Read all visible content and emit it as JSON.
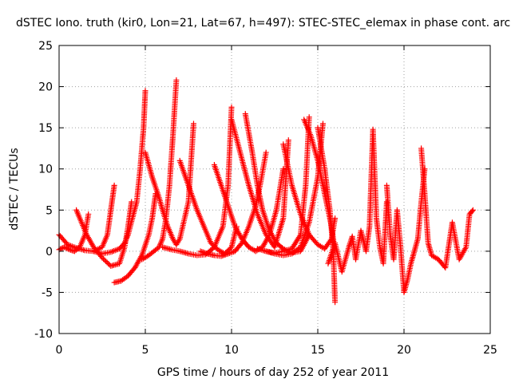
{
  "chart_data": {
    "type": "scatter",
    "title": "dSTEC Iono. truth (kir0, Lon=21, Lat=67, h=497): STEC-STEC_elemax in phase cont. arc",
    "xlabel": "GPS time / hours of day 252 of year 2011",
    "ylabel": "dSTEC  / TECUs",
    "xlim": [
      0,
      25
    ],
    "ylim": [
      -10,
      25
    ],
    "xticks": [
      0,
      5,
      10,
      15,
      20,
      25
    ],
    "yticks": [
      -10,
      -5,
      0,
      5,
      10,
      15,
      20,
      25
    ],
    "xtick_labels": [
      "0",
      "5",
      "10",
      "15",
      "20",
      "25"
    ],
    "ytick_labels": [
      "-10",
      "-5",
      "0",
      "5",
      "10",
      "15",
      "20",
      "25"
    ],
    "grid": true,
    "legend": "none",
    "marker": "plus",
    "marker_color": "#ff0000",
    "arcs": [
      {
        "x": [
          0.0,
          0.5,
          1.0,
          1.5,
          2.0,
          2.5,
          2.8,
          3.0,
          3.2
        ],
        "y": [
          2.0,
          0.8,
          0.4,
          0.1,
          0.0,
          0.5,
          2.0,
          5.0,
          8.0
        ]
      },
      {
        "x": [
          0.0,
          0.3,
          0.6,
          0.9,
          1.2,
          1.5,
          1.7
        ],
        "y": [
          0.2,
          0.5,
          0.2,
          0.0,
          0.5,
          2.0,
          4.5
        ]
      },
      {
        "x": [
          1.0,
          1.3,
          1.6,
          2.0,
          2.5,
          3.0,
          3.5,
          3.8,
          4.0,
          4.2
        ],
        "y": [
          5.0,
          3.5,
          2.0,
          0.5,
          -0.8,
          -1.8,
          -1.5,
          0.5,
          3.0,
          6.0
        ]
      },
      {
        "x": [
          2.0,
          2.5,
          3.0,
          3.5,
          3.8,
          4.0,
          4.5,
          4.7,
          4.9,
          5.0
        ],
        "y": [
          0.0,
          -0.3,
          -0.1,
          0.3,
          1.0,
          2.0,
          6.0,
          10.0,
          15.0,
          19.5
        ]
      },
      {
        "x": [
          3.2,
          3.6,
          4.0,
          4.4,
          4.8,
          5.2,
          5.4,
          5.6
        ],
        "y": [
          -3.8,
          -3.6,
          -3.0,
          -2.0,
          -0.5,
          2.0,
          4.0,
          7.0
        ]
      },
      {
        "x": [
          4.8,
          5.2,
          5.5,
          5.8,
          6.0,
          6.2,
          6.4,
          6.6,
          6.8
        ],
        "y": [
          -1.0,
          -0.5,
          0.0,
          0.5,
          1.5,
          4.0,
          8.0,
          14.0,
          20.8
        ]
      },
      {
        "x": [
          5.0,
          5.4,
          5.8,
          6.0,
          6.3,
          6.6,
          6.8,
          7.0,
          7.5,
          7.8
        ],
        "y": [
          12.0,
          9.0,
          6.5,
          5.0,
          3.0,
          1.5,
          0.8,
          1.5,
          6.0,
          15.5
        ]
      },
      {
        "x": [
          6.0,
          6.5,
          7.0,
          7.5,
          8.0,
          8.5,
          9.0,
          9.5,
          9.8,
          10.0
        ],
        "y": [
          0.5,
          0.2,
          0.0,
          -0.3,
          -0.5,
          -0.4,
          0.5,
          3.0,
          8.0,
          17.5
        ]
      },
      {
        "x": [
          7.0,
          7.5,
          8.0,
          8.5,
          8.8,
          9.2,
          9.6,
          10.0,
          10.3
        ],
        "y": [
          11.0,
          8.0,
          5.0,
          2.5,
          1.0,
          0.2,
          -0.3,
          0.5,
          3.0
        ]
      },
      {
        "x": [
          8.2,
          8.6,
          9.0,
          9.4,
          9.8,
          10.2,
          10.6,
          11.0,
          11.4,
          11.7,
          12.0
        ],
        "y": [
          0.0,
          -0.3,
          -0.5,
          -0.6,
          -0.3,
          0.0,
          1.0,
          3.0,
          5.5,
          8.5,
          12.0
        ]
      },
      {
        "x": [
          9.0,
          9.4,
          9.8,
          10.2,
          10.6,
          11.0,
          11.4,
          11.8,
          12.2,
          12.6,
          13.0
        ],
        "y": [
          10.5,
          8.0,
          5.5,
          3.0,
          1.5,
          0.5,
          0.0,
          0.5,
          2.0,
          5.0,
          10.0
        ]
      },
      {
        "x": [
          10.0,
          10.5,
          11.0,
          11.5,
          12.0,
          12.5,
          13.0,
          13.3
        ],
        "y": [
          16.0,
          12.0,
          8.0,
          4.5,
          2.0,
          0.5,
          4.0,
          13.5
        ]
      },
      {
        "x": [
          10.8,
          11.2,
          11.5,
          11.8,
          12.2,
          12.6,
          13.0,
          13.5,
          14.0,
          14.5
        ],
        "y": [
          16.7,
          12.0,
          8.0,
          5.0,
          2.5,
          1.0,
          0.3,
          -0.2,
          0.0,
          2.0
        ]
      },
      {
        "x": [
          11.5,
          12.0,
          12.5,
          13.0,
          13.5,
          14.0,
          14.5,
          15.0,
          15.3
        ],
        "y": [
          0.3,
          0.0,
          -0.3,
          -0.5,
          -0.3,
          0.5,
          3.5,
          9.0,
          15.5
        ]
      },
      {
        "x": [
          12.0,
          12.5,
          13.0,
          13.5,
          14.0,
          14.3,
          14.5
        ],
        "y": [
          0.0,
          -0.2,
          0.0,
          0.3,
          2.0,
          8.0,
          16.3
        ]
      },
      {
        "x": [
          13.0,
          13.5,
          14.0,
          14.5,
          15.0,
          15.4,
          15.8,
          16.0
        ],
        "y": [
          13.0,
          8.0,
          4.5,
          2.0,
          0.8,
          0.3,
          1.5,
          4.0
        ]
      },
      {
        "x": [
          14.2,
          14.6,
          15.0,
          15.4,
          15.8,
          16.0
        ],
        "y": [
          16.0,
          14.0,
          11.0,
          7.0,
          3.0,
          0.0
        ]
      },
      {
        "x": [
          15.0,
          15.4,
          15.7,
          15.9,
          16.0
        ],
        "y": [
          15.0,
          10.0,
          5.0,
          0.0,
          -6.2
        ]
      },
      {
        "x": [
          15.6,
          16.0,
          16.4,
          16.8,
          17.0,
          17.2,
          17.5,
          17.8,
          18.0,
          18.2,
          18.4,
          18.6,
          18.8,
          19.0
        ],
        "y": [
          -1.5,
          1.0,
          -2.5,
          0.5,
          1.8,
          -1.0,
          2.5,
          0.0,
          3.0,
          14.8,
          4.0,
          0.5,
          -1.5,
          6.0
        ]
      },
      {
        "x": [
          19.0,
          19.2,
          19.4,
          19.6,
          19.8,
          20.0,
          20.2,
          20.4,
          20.6,
          20.8,
          21.0,
          21.2
        ],
        "y": [
          8.0,
          2.0,
          -1.0,
          5.0,
          0.5,
          -5.0,
          -3.5,
          -1.5,
          0.0,
          1.5,
          6.0,
          10.0
        ]
      },
      {
        "x": [
          21.0,
          21.2,
          21.4,
          21.6,
          22.0,
          22.4,
          22.8,
          23.2,
          23.6,
          23.8,
          24.0
        ],
        "y": [
          12.5,
          7.0,
          1.0,
          -0.5,
          -1.0,
          -2.0,
          3.5,
          -1.0,
          0.5,
          4.5,
          5.0
        ]
      }
    ]
  }
}
